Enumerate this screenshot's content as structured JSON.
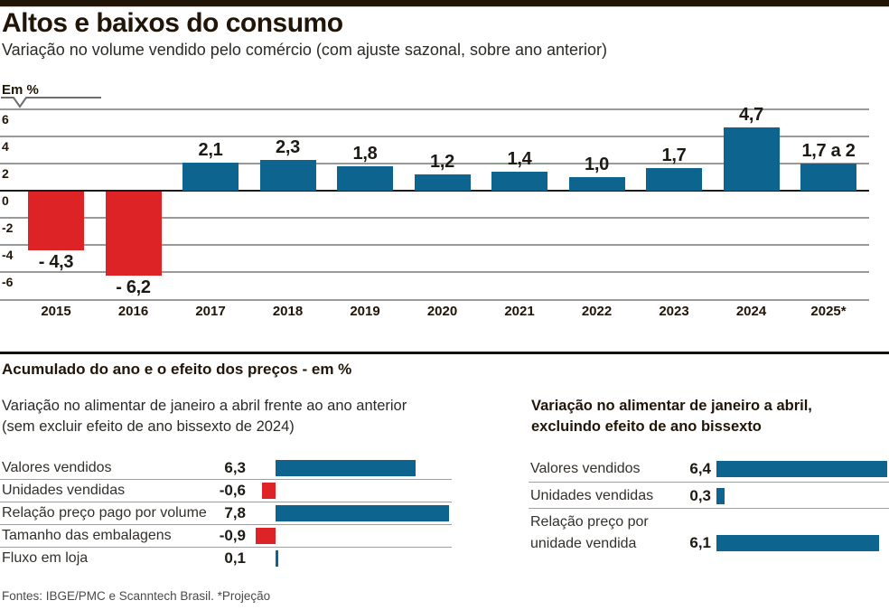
{
  "page": {
    "title": "Altos e baixos do consumo",
    "subtitle": "Variação no volume vendido pelo comércio (com ajuste sazonal, sobre ano anterior)",
    "footer": "Fontes: IBGE/PMC e Scanntech Brasil. *Projeção"
  },
  "colors": {
    "positive": "#0d648f",
    "negative": "#dd2326",
    "grid": "#999999",
    "zero_line": "#1b1b1b",
    "top_bar": "#211507"
  },
  "section2": {
    "heading": "Acumulado do ano e o efeito dos preços - em %"
  },
  "chart_data": [
    {
      "type": "bar",
      "title": "Variação no volume vendido pelo comércio (com ajuste sazonal, sobre ano anterior)",
      "unit_label": "Em %",
      "categories": [
        "2015",
        "2016",
        "2017",
        "2018",
        "2019",
        "2020",
        "2021",
        "2022",
        "2023",
        "2024",
        "2025*"
      ],
      "values": [
        -4.3,
        -6.2,
        2.1,
        2.3,
        1.8,
        1.2,
        1.4,
        1.0,
        1.7,
        4.7,
        2.0
      ],
      "labels": [
        "- 4,3",
        "- 6,2",
        "2,1",
        "2,3",
        "1,8",
        "1,2",
        "1,4",
        "1,0",
        "1,7",
        "4,7",
        "1,7 a 2"
      ],
      "yticks": [
        6,
        4,
        2,
        0,
        -2,
        -4,
        -6
      ],
      "ylim": [
        -6,
        6
      ],
      "grid": "on",
      "note": "2025* é projeção, faixa de 1,7 a 2"
    },
    {
      "type": "bar",
      "orientation": "horizontal",
      "title_line1": "Variação no alimentar de janeiro a abril frente ao ano anterior",
      "title_line2": "(sem excluir efeito de ano bissexto de 2024)",
      "rows": [
        {
          "label": "Valores vendidos",
          "value": 6.3,
          "display": "6,3"
        },
        {
          "label": "Unidades vendidas",
          "value": -0.6,
          "display": "-0,6"
        },
        {
          "label": "Relação preço pago por volume",
          "value": 7.8,
          "display": "7,8"
        },
        {
          "label": "Tamanho das embalagens",
          "value": -0.9,
          "display": "-0,9"
        },
        {
          "label": "Fluxo em loja",
          "value": 0.1,
          "display": "0,1"
        }
      ]
    },
    {
      "type": "bar",
      "orientation": "horizontal",
      "title_line1": "Variação no alimentar de janeiro a abril,",
      "title_line2": "excluindo efeito de ano bissexto",
      "rows": [
        {
          "label": "Valores vendidos",
          "value": 6.4,
          "display": "6,4"
        },
        {
          "label": "Unidades vendidas",
          "value": 0.3,
          "display": "0,3"
        },
        {
          "label": "Relação preço por unidade vendida",
          "label_lines": [
            "Relação preço por",
            "unidade vendida"
          ],
          "value": 6.1,
          "display": "6,1"
        }
      ]
    }
  ]
}
